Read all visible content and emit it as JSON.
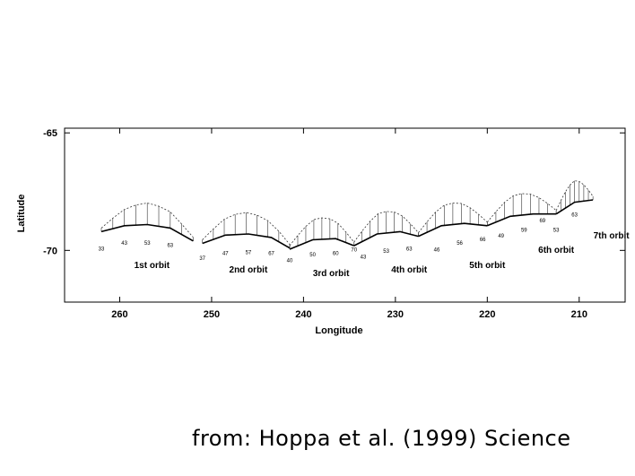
{
  "credit": "from:  Hoppa et al. (1999) Science",
  "chart_data": {
    "type": "line",
    "xlabel": "Longitude",
    "ylabel": "Latitude",
    "xlim": [
      266,
      205
    ],
    "ylim": [
      -72.2,
      -64.8
    ],
    "x_ticks": [
      260,
      250,
      240,
      230,
      220,
      210
    ],
    "y_ticks": [
      -65,
      -70
    ],
    "grid": false,
    "series": [
      {
        "name": "1st orbit",
        "x": [
          262,
          259.5,
          257,
          254.5,
          252
        ],
        "y": [
          -69.2,
          -68.95,
          -68.9,
          -69.05,
          -69.6
        ]
      },
      {
        "name": "2nd orbit",
        "x": [
          251,
          248.5,
          246,
          243.5,
          241.5
        ],
        "y": [
          -69.7,
          -69.35,
          -69.3,
          -69.45,
          -69.9
        ]
      },
      {
        "name": "3rd orbit",
        "x": [
          241.5,
          239,
          236.5,
          234.5
        ],
        "y": [
          -69.95,
          -69.55,
          -69.5,
          -69.8
        ]
      },
      {
        "name": "4th orbit",
        "x": [
          234.5,
          232,
          229.5,
          227.5
        ],
        "y": [
          -69.8,
          -69.3,
          -69.2,
          -69.4
        ]
      },
      {
        "name": "5th orbit",
        "x": [
          227.5,
          225,
          222.5,
          220
        ],
        "y": [
          -69.4,
          -68.95,
          -68.85,
          -68.95
        ]
      },
      {
        "name": "6th orbit",
        "x": [
          220,
          217.5,
          215,
          212.5
        ],
        "y": [
          -68.95,
          -68.55,
          -68.45,
          -68.45
        ]
      },
      {
        "name": "7th orbit",
        "x": [
          212.5,
          210.5,
          208.5
        ],
        "y": [
          -68.45,
          -67.95,
          -67.85
        ]
      }
    ],
    "point_labels": [
      {
        "text": "33",
        "x": 262,
        "y": -70.0
      },
      {
        "text": "43",
        "x": 259.5,
        "y": -69.75
      },
      {
        "text": "53",
        "x": 257,
        "y": -69.75
      },
      {
        "text": "63",
        "x": 254.5,
        "y": -69.85
      },
      {
        "text": "37",
        "x": 251,
        "y": -70.4
      },
      {
        "text": "47",
        "x": 248.5,
        "y": -70.2
      },
      {
        "text": "57",
        "x": 246,
        "y": -70.15
      },
      {
        "text": "67",
        "x": 243.5,
        "y": -70.2
      },
      {
        "text": "40",
        "x": 241.5,
        "y": -70.5
      },
      {
        "text": "50",
        "x": 239,
        "y": -70.25
      },
      {
        "text": "60",
        "x": 236.5,
        "y": -70.2
      },
      {
        "text": "70",
        "x": 234.5,
        "y": -70.05
      },
      {
        "text": "43",
        "x": 233.5,
        "y": -70.35
      },
      {
        "text": "53",
        "x": 231,
        "y": -70.1
      },
      {
        "text": "63",
        "x": 228.5,
        "y": -70.0
      },
      {
        "text": "46",
        "x": 225.5,
        "y": -70.05
      },
      {
        "text": "56",
        "x": 223,
        "y": -69.75
      },
      {
        "text": "66",
        "x": 220.5,
        "y": -69.6
      },
      {
        "text": "49",
        "x": 218.5,
        "y": -69.45
      },
      {
        "text": "59",
        "x": 216,
        "y": -69.2
      },
      {
        "text": "69",
        "x": 214,
        "y": -68.8
      },
      {
        "text": "53",
        "x": 212.5,
        "y": -69.2
      },
      {
        "text": "63",
        "x": 210.5,
        "y": -68.55
      }
    ],
    "orbit_labels": [
      {
        "text": "1st orbit",
        "x": 256.5,
        "y": -70.75
      },
      {
        "text": "2nd orbit",
        "x": 246,
        "y": -70.95
      },
      {
        "text": "3rd orbit",
        "x": 237,
        "y": -71.1
      },
      {
        "text": "4th orbit",
        "x": 228.5,
        "y": -70.95
      },
      {
        "text": "5th orbit",
        "x": 220,
        "y": -70.75
      },
      {
        "text": "6th orbit",
        "x": 212.5,
        "y": -70.1
      },
      {
        "text": "7th orbit",
        "x": 206.5,
        "y": -69.5
      }
    ]
  }
}
